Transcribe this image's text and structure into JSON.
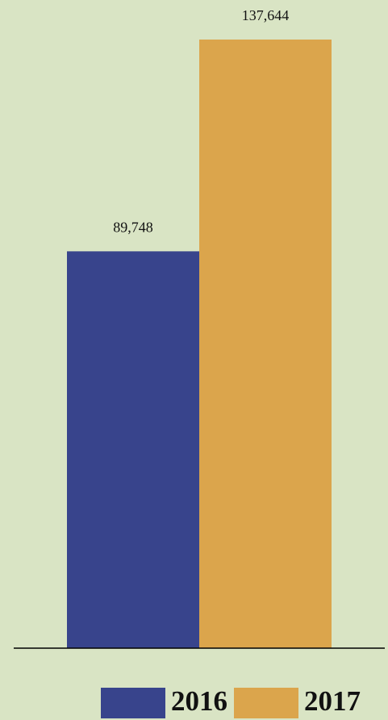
{
  "chart_data": {
    "type": "bar",
    "categories": [
      null
    ],
    "series": [
      {
        "name": "2016",
        "color": "#38448c",
        "values": [
          89748
        ],
        "value_labels": [
          "89,748"
        ]
      },
      {
        "name": "2017",
        "color": "#dba54c",
        "values": [
          137644
        ],
        "value_labels": [
          "137,644"
        ]
      }
    ],
    "grid": false
  }
}
